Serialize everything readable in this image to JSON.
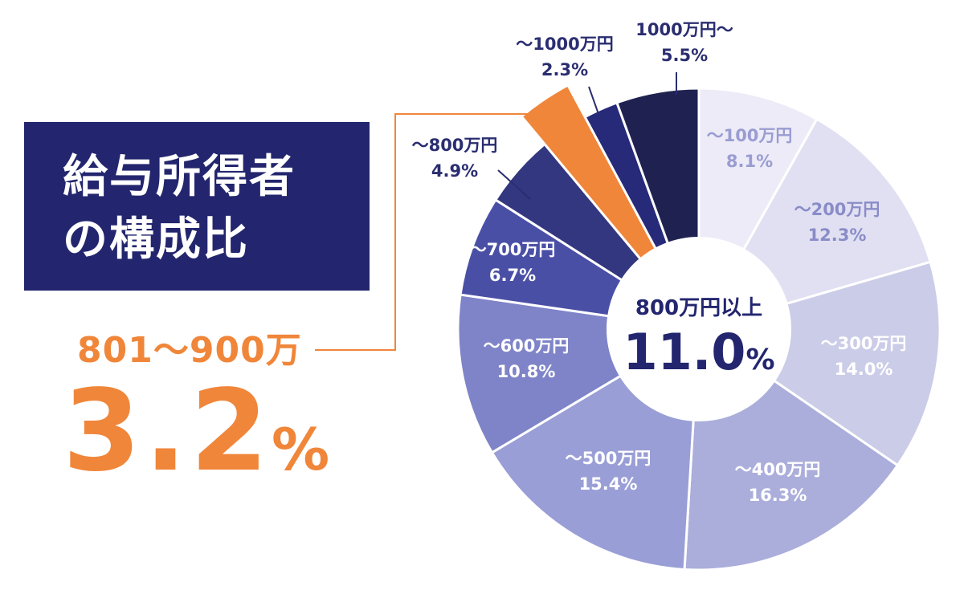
{
  "title_lines": [
    "給与所得者",
    "の構成比"
  ],
  "highlight": {
    "label": "801〜900万",
    "value": "3.2",
    "unit": "%"
  },
  "center": {
    "label": "800万円以上",
    "value": "11.0",
    "unit": "%"
  },
  "chart_data": {
    "type": "pie",
    "title": "給与所得者の構成比",
    "slices": [
      {
        "label": "〜100万円",
        "value": 8.1,
        "display": "8.1%",
        "color": "#ecebf7",
        "text_color": "#9a9cd2"
      },
      {
        "label": "〜200万円",
        "value": 12.3,
        "display": "12.3%",
        "color": "#e0e0f2",
        "text_color": "#8a8cc8"
      },
      {
        "label": "〜300万円",
        "value": 14.0,
        "display": "14.0%",
        "color": "#cbcce8",
        "text_color": "#ffffff"
      },
      {
        "label": "〜400万円",
        "value": 16.3,
        "display": "16.3%",
        "color": "#abaedb",
        "text_color": "#ffffff"
      },
      {
        "label": "〜500万円",
        "value": 15.4,
        "display": "15.4%",
        "color": "#999ed6",
        "text_color": "#ffffff"
      },
      {
        "label": "〜600万円",
        "value": 10.8,
        "display": "10.8%",
        "color": "#7f84c8",
        "text_color": "#ffffff"
      },
      {
        "label": "〜700万円",
        "value": 6.7,
        "display": "6.7%",
        "color": "#4a4fa6",
        "text_color": "#ffffff"
      },
      {
        "label": "〜800万円",
        "value": 4.9,
        "display": "4.9%",
        "color": "#33377f",
        "text_color": "#2a2d70"
      },
      {
        "label": "801〜900万",
        "value": 3.2,
        "display": "3.2%",
        "color": "#f0863a",
        "text_color": "#f0863a",
        "highlight": true
      },
      {
        "label": "〜1000万円",
        "value": 2.3,
        "display": "2.3%",
        "color": "#262a78",
        "text_color": "#2a2d70"
      },
      {
        "label": "1000万円〜",
        "value": 5.5,
        "display": "5.5%",
        "color": "#1f2250",
        "text_color": "#2a2d70"
      }
    ]
  }
}
